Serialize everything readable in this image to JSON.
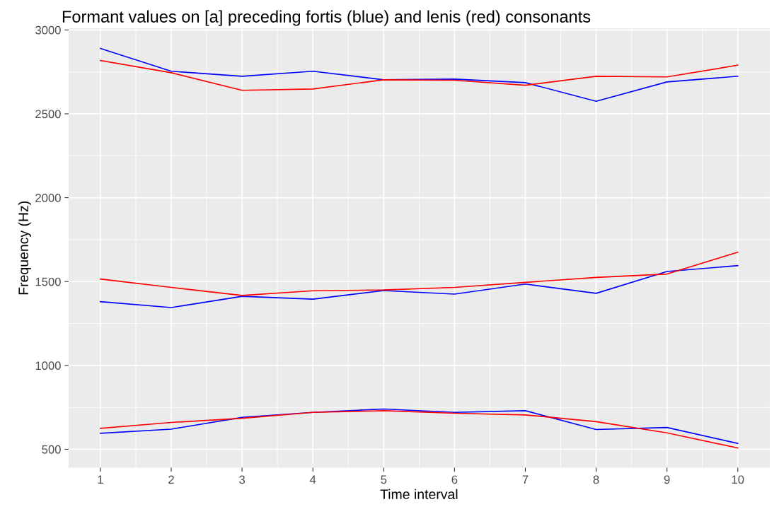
{
  "chart_data": {
    "type": "line",
    "title": "Formant values on [a] preceding fortis (blue) and lenis (red) consonants",
    "xlabel": "Time interval",
    "ylabel": "Frequency (Hz)",
    "x": [
      1,
      2,
      3,
      4,
      5,
      6,
      7,
      8,
      9,
      10
    ],
    "series": [
      {
        "color": "#0000ff",
        "values": [
          2890,
          2754,
          2724,
          2754,
          2703,
          2707,
          2686,
          2575,
          2690,
          2724
        ]
      },
      {
        "color": "#ff0000",
        "values": [
          2818,
          2745,
          2640,
          2648,
          2703,
          2700,
          2670,
          2724,
          2720,
          2790
        ]
      },
      {
        "color": "#0000ff",
        "values": [
          1380,
          1345,
          1412,
          1395,
          1446,
          1425,
          1485,
          1430,
          1560,
          1595
        ]
      },
      {
        "color": "#ff0000",
        "values": [
          1515,
          1465,
          1417,
          1445,
          1450,
          1465,
          1495,
          1525,
          1545,
          1675
        ]
      },
      {
        "color": "#0000ff",
        "values": [
          595,
          620,
          690,
          720,
          740,
          720,
          730,
          618,
          630,
          535
        ]
      },
      {
        "color": "#ff0000",
        "values": [
          625,
          660,
          685,
          720,
          730,
          715,
          705,
          665,
          598,
          508
        ]
      }
    ],
    "xlim": [
      0.55,
      10.45
    ],
    "ylim": [
      390,
      3010
    ],
    "xticks": [
      1,
      2,
      3,
      4,
      5,
      6,
      7,
      8,
      9,
      10
    ],
    "yticks": [
      500,
      1000,
      1500,
      2000,
      2500,
      3000
    ],
    "grid": true,
    "marker": "none",
    "line_style": "solid"
  }
}
